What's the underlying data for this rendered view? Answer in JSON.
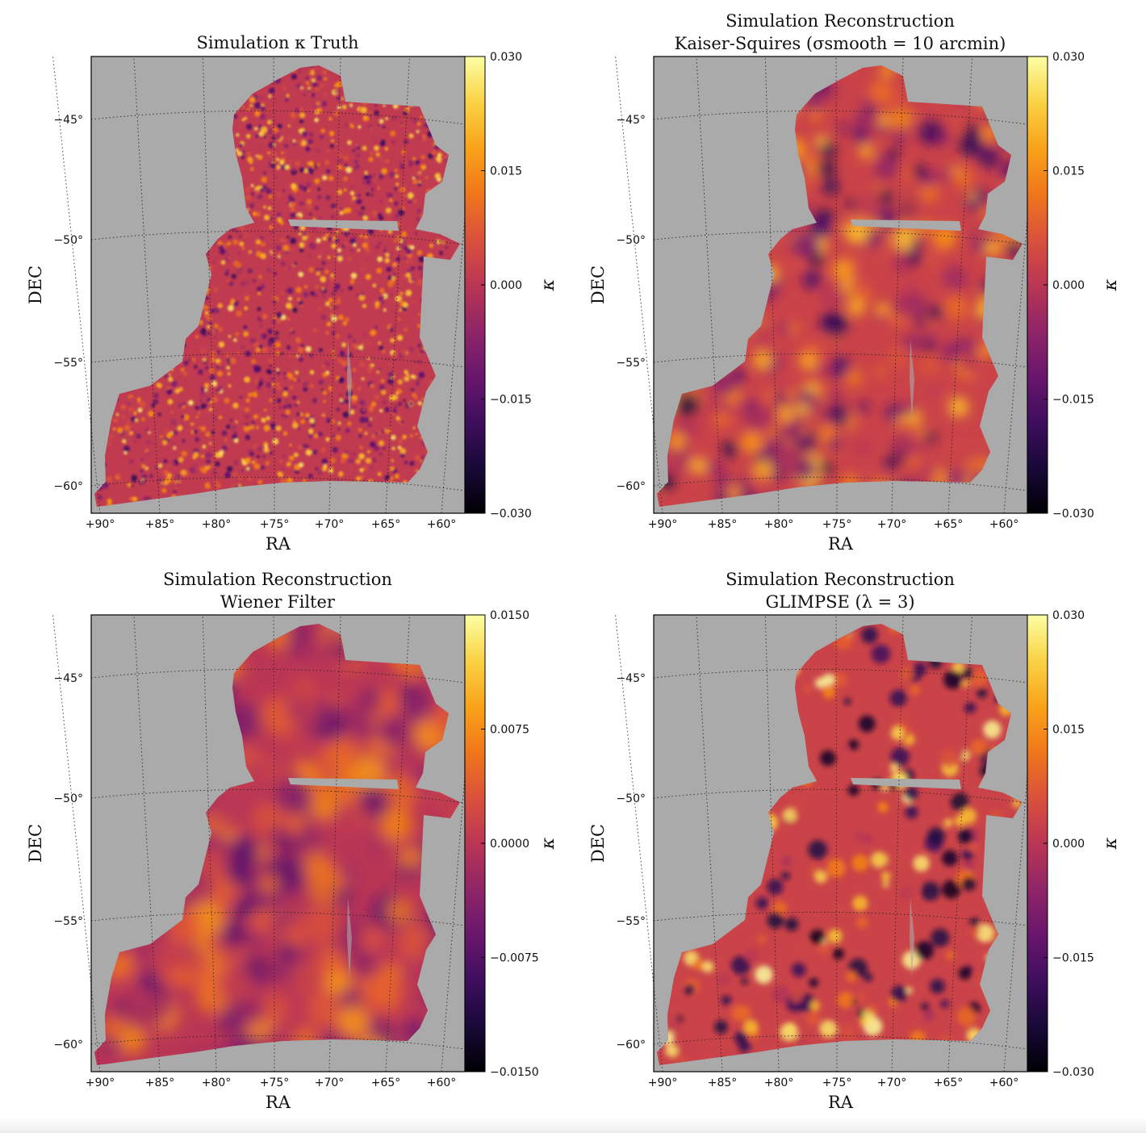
{
  "colors": {
    "background": "#aaaaaa",
    "colormap": "inferno",
    "grid_line": "#222222"
  },
  "chart_data": [
    {
      "type": "heatmap",
      "title_lines": [
        "Simulation κ Truth"
      ],
      "xlabel": "RA",
      "ylabel": "DEC",
      "x_ticks": [
        "+90°",
        "+85°",
        "+80°",
        "+75°",
        "+70°",
        "+65°",
        "+60°"
      ],
      "y_ticks": [
        "−45°",
        "−50°",
        "−55°",
        "−60°"
      ],
      "colorbar": {
        "label": "κ",
        "min": -0.03,
        "max": 0.03,
        "ticks": [
          "0.030",
          "0.015",
          "0.000",
          "−0.015",
          "−0.030"
        ]
      },
      "field_style": "noisy",
      "grid": true
    },
    {
      "type": "heatmap",
      "title_lines": [
        "Simulation Reconstruction",
        "Kaiser-Squires  (σsmooth = 10 arcmin)"
      ],
      "xlabel": "RA",
      "ylabel": "DEC",
      "x_ticks": [
        "+90°",
        "+85°",
        "+80°",
        "+75°",
        "+70°",
        "+65°",
        "+60°"
      ],
      "y_ticks": [
        "−45°",
        "−50°",
        "−55°",
        "−60°"
      ],
      "colorbar": {
        "label": "κ",
        "min": -0.03,
        "max": 0.03,
        "ticks": [
          "0.030",
          "0.015",
          "0.000",
          "−0.015",
          "−0.030"
        ]
      },
      "field_style": "smooth",
      "grid": true
    },
    {
      "type": "heatmap",
      "title_lines": [
        "Simulation Reconstruction",
        "Wiener Filter"
      ],
      "xlabel": "RA",
      "ylabel": "DEC",
      "x_ticks": [
        "+90°",
        "+85°",
        "+80°",
        "+75°",
        "+70°",
        "+65°",
        "+60°"
      ],
      "y_ticks": [
        "−45°",
        "−50°",
        "−55°",
        "−60°"
      ],
      "colorbar": {
        "label": "κ",
        "min": -0.015,
        "max": 0.015,
        "ticks": [
          "0.0150",
          "0.0075",
          "0.0000",
          "−0.0075",
          "−0.0150"
        ]
      },
      "field_style": "wiener",
      "grid": true
    },
    {
      "type": "heatmap",
      "title_lines": [
        "Simulation Reconstruction",
        "GLIMPSE  (λ = 3)"
      ],
      "xlabel": "RA",
      "ylabel": "DEC",
      "x_ticks": [
        "+90°",
        "+85°",
        "+80°",
        "+75°",
        "+70°",
        "+65°",
        "+60°"
      ],
      "y_ticks": [
        "−45°",
        "−50°",
        "−55°",
        "−60°"
      ],
      "colorbar": {
        "label": "κ",
        "min": -0.03,
        "max": 0.03,
        "ticks": [
          "0.030",
          "0.015",
          "0.000",
          "−0.015",
          "−0.030"
        ]
      },
      "field_style": "spots",
      "grid": true
    }
  ]
}
